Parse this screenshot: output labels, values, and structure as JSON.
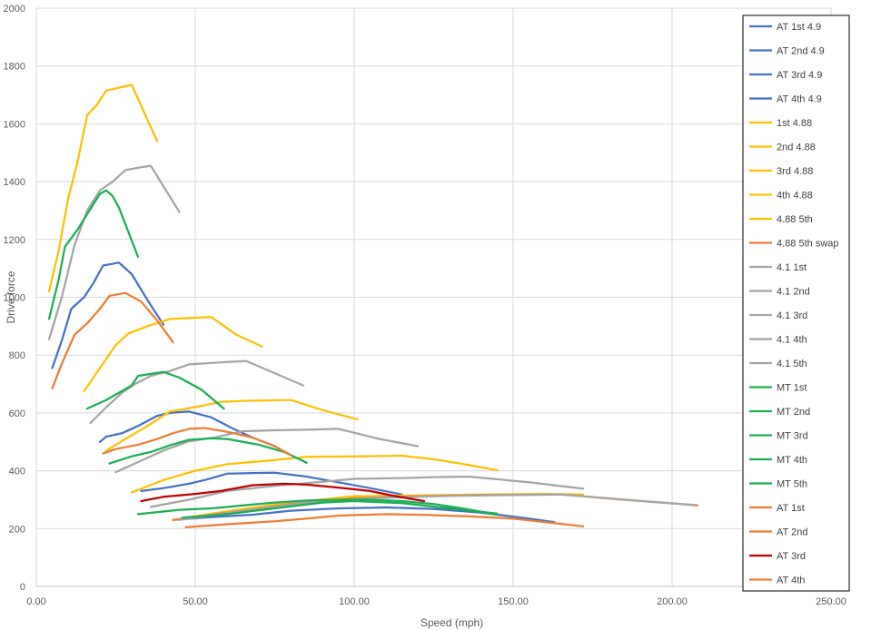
{
  "chart_data": {
    "type": "line",
    "xlabel": "Speed (mph)",
    "ylabel": "Drive force",
    "xlim": [
      0,
      250
    ],
    "ylim": [
      0,
      2000
    ],
    "x_ticks": [
      "0.00",
      "50.00",
      "100.00",
      "150.00",
      "200.00",
      "250.00"
    ],
    "y_ticks": [
      "0",
      "200",
      "400",
      "600",
      "800",
      "1000",
      "1200",
      "1400",
      "1600",
      "1800",
      "2000"
    ],
    "grid": true,
    "legend_position": "right",
    "series": [
      {
        "name": "AT 1st 4.9",
        "color": "#4472C4",
        "points": [
          [
            5,
            755
          ],
          [
            8,
            850
          ],
          [
            11,
            960
          ],
          [
            15,
            1000
          ],
          [
            18,
            1050
          ],
          [
            21,
            1110
          ],
          [
            26,
            1120
          ],
          [
            30,
            1080
          ],
          [
            35,
            990
          ],
          [
            40,
            905
          ]
        ]
      },
      {
        "name": "AT 2nd 4.9",
        "color": "#4472C4",
        "points": [
          [
            20,
            500
          ],
          [
            22,
            518
          ],
          [
            27,
            530
          ],
          [
            32,
            555
          ],
          [
            38,
            590
          ],
          [
            42,
            600
          ],
          [
            48,
            605
          ],
          [
            55,
            585
          ],
          [
            62,
            545
          ],
          [
            68,
            515
          ],
          [
            75,
            485
          ]
        ]
      },
      {
        "name": "AT 3rd 4.9",
        "color": "#4472C4",
        "points": [
          [
            33,
            330
          ],
          [
            40,
            340
          ],
          [
            48,
            355
          ],
          [
            53,
            368
          ],
          [
            60,
            390
          ],
          [
            68,
            392
          ],
          [
            75,
            393
          ],
          [
            85,
            380
          ],
          [
            95,
            360
          ],
          [
            105,
            340
          ],
          [
            115,
            318
          ]
        ]
      },
      {
        "name": "AT 4th 4.9",
        "color": "#4472C4",
        "points": [
          [
            43,
            230
          ],
          [
            55,
            240
          ],
          [
            68,
            248
          ],
          [
            80,
            262
          ],
          [
            95,
            270
          ],
          [
            110,
            273
          ],
          [
            125,
            268
          ],
          [
            140,
            255
          ],
          [
            155,
            235
          ],
          [
            163,
            222
          ]
        ]
      },
      {
        "name": "1st 4.88",
        "color": "#FFC000",
        "points": [
          [
            4,
            1020
          ],
          [
            7,
            1160
          ],
          [
            10,
            1340
          ],
          [
            13,
            1470
          ],
          [
            16,
            1630
          ],
          [
            19,
            1665
          ],
          [
            22,
            1715
          ],
          [
            26,
            1725
          ],
          [
            30,
            1735
          ],
          [
            38,
            1540
          ]
        ]
      },
      {
        "name": "2nd 4.88",
        "color": "#FFC000",
        "points": [
          [
            15,
            675
          ],
          [
            20,
            755
          ],
          [
            25,
            835
          ],
          [
            29,
            875
          ],
          [
            35,
            900
          ],
          [
            42,
            925
          ],
          [
            48,
            928
          ],
          [
            55,
            932
          ],
          [
            63,
            870
          ],
          [
            71,
            830
          ]
        ]
      },
      {
        "name": "3rd 4.88",
        "color": "#FFC000",
        "points": [
          [
            22,
            470
          ],
          [
            28,
            510
          ],
          [
            35,
            555
          ],
          [
            42,
            605
          ],
          [
            50,
            620
          ],
          [
            58,
            638
          ],
          [
            66,
            642
          ],
          [
            80,
            645
          ],
          [
            90,
            610
          ],
          [
            101,
            578
          ]
        ]
      },
      {
        "name": "4th 4.88",
        "color": "#FFC000",
        "points": [
          [
            30,
            325
          ],
          [
            40,
            368
          ],
          [
            50,
            400
          ],
          [
            60,
            423
          ],
          [
            75,
            437
          ],
          [
            85,
            448
          ],
          [
            100,
            450
          ],
          [
            115,
            452
          ],
          [
            125,
            440
          ],
          [
            135,
            422
          ],
          [
            145,
            402
          ]
        ]
      },
      {
        "name": "4.88 5th",
        "color": "#FFC000",
        "points": [
          [
            43,
            230
          ],
          [
            60,
            260
          ],
          [
            80,
            290
          ],
          [
            100,
            312
          ],
          [
            120,
            315
          ],
          [
            140,
            318
          ],
          [
            160,
            320
          ],
          [
            172,
            318
          ]
        ]
      },
      {
        "name": "4.88 5th swap",
        "color": "#ED7D31",
        "points": [
          [
            43,
            230
          ],
          [
            60,
            255
          ],
          [
            80,
            285
          ],
          [
            100,
            305
          ],
          [
            120,
            312
          ],
          [
            140,
            316
          ],
          [
            165,
            318
          ],
          [
            185,
            300
          ],
          [
            208,
            280
          ]
        ]
      },
      {
        "name": "4.1 1st",
        "color": "#A5A5A5",
        "points": [
          [
            4,
            855
          ],
          [
            8,
            1000
          ],
          [
            12,
            1180
          ],
          [
            16,
            1300
          ],
          [
            20,
            1370
          ],
          [
            24,
            1400
          ],
          [
            28,
            1440
          ],
          [
            32,
            1448
          ],
          [
            36,
            1455
          ],
          [
            45,
            1295
          ]
        ]
      },
      {
        "name": "4.1 2nd",
        "color": "#A5A5A5",
        "points": [
          [
            17,
            565
          ],
          [
            22,
            620
          ],
          [
            27,
            670
          ],
          [
            31,
            700
          ],
          [
            36,
            728
          ],
          [
            42,
            745
          ],
          [
            48,
            768
          ],
          [
            58,
            775
          ],
          [
            66,
            780
          ],
          [
            84,
            695
          ]
        ]
      },
      {
        "name": "4.1 3rd",
        "color": "#A5A5A5",
        "points": [
          [
            25,
            395
          ],
          [
            32,
            430
          ],
          [
            40,
            470
          ],
          [
            48,
            502
          ],
          [
            56,
            515
          ],
          [
            65,
            537
          ],
          [
            75,
            540
          ],
          [
            85,
            542
          ],
          [
            95,
            545
          ],
          [
            108,
            510
          ],
          [
            120,
            485
          ]
        ]
      },
      {
        "name": "4.1 4th",
        "color": "#A5A5A5",
        "points": [
          [
            36,
            275
          ],
          [
            48,
            300
          ],
          [
            60,
            330
          ],
          [
            75,
            348
          ],
          [
            90,
            362
          ],
          [
            100,
            372
          ],
          [
            115,
            375
          ],
          [
            125,
            378
          ],
          [
            136,
            380
          ],
          [
            155,
            360
          ],
          [
            172,
            338
          ]
        ]
      },
      {
        "name": "4.1 5th",
        "color": "#A5A5A5",
        "points": [
          [
            45,
            230
          ],
          [
            65,
            262
          ],
          [
            85,
            290
          ],
          [
            105,
            305
          ],
          [
            125,
            312
          ],
          [
            150,
            316
          ],
          [
            165,
            318
          ],
          [
            185,
            300
          ],
          [
            207,
            282
          ]
        ]
      },
      {
        "name": "MT 1st",
        "color": "#1AAF54",
        "points": [
          [
            4,
            925
          ],
          [
            7,
            1060
          ],
          [
            9,
            1175
          ],
          [
            13,
            1235
          ],
          [
            17,
            1305
          ],
          [
            20,
            1358
          ],
          [
            22,
            1370
          ],
          [
            24,
            1350
          ],
          [
            26,
            1310
          ],
          [
            32,
            1140
          ]
        ]
      },
      {
        "name": "MT 2nd",
        "color": "#1AAF54",
        "points": [
          [
            16,
            615
          ],
          [
            22,
            645
          ],
          [
            26,
            670
          ],
          [
            30,
            695
          ],
          [
            32,
            728
          ],
          [
            36,
            735
          ],
          [
            40,
            742
          ],
          [
            45,
            722
          ],
          [
            52,
            680
          ],
          [
            59,
            615
          ]
        ]
      },
      {
        "name": "MT 3rd",
        "color": "#1AAF54",
        "points": [
          [
            23,
            425
          ],
          [
            30,
            450
          ],
          [
            36,
            465
          ],
          [
            42,
            488
          ],
          [
            48,
            507
          ],
          [
            55,
            512
          ],
          [
            60,
            510
          ],
          [
            70,
            490
          ],
          [
            78,
            465
          ],
          [
            85,
            428
          ]
        ]
      },
      {
        "name": "MT 4th",
        "color": "#1AAF54",
        "points": [
          [
            32,
            250
          ],
          [
            45,
            265
          ],
          [
            55,
            270
          ],
          [
            65,
            280
          ],
          [
            75,
            290
          ],
          [
            85,
            297
          ],
          [
            95,
            300
          ],
          [
            105,
            300
          ],
          [
            115,
            295
          ],
          [
            125,
            285
          ],
          [
            135,
            268
          ],
          [
            145,
            248
          ]
        ]
      },
      {
        "name": "MT 5th",
        "color": "#1AAF54",
        "points": [
          [
            46,
            238
          ],
          [
            60,
            250
          ],
          [
            75,
            270
          ],
          [
            90,
            290
          ],
          [
            100,
            295
          ],
          [
            115,
            288
          ],
          [
            130,
            270
          ],
          [
            145,
            252
          ]
        ]
      },
      {
        "name": "AT 1st",
        "color": "#ED7D31",
        "points": [
          [
            5,
            685
          ],
          [
            8,
            770
          ],
          [
            12,
            870
          ],
          [
            16,
            910
          ],
          [
            20,
            960
          ],
          [
            23,
            1005
          ],
          [
            28,
            1015
          ],
          [
            33,
            985
          ],
          [
            38,
            920
          ],
          [
            43,
            845
          ]
        ]
      },
      {
        "name": "AT 2nd",
        "color": "#ED7D31",
        "points": [
          [
            21,
            460
          ],
          [
            25,
            475
          ],
          [
            32,
            490
          ],
          [
            38,
            510
          ],
          [
            43,
            530
          ],
          [
            48,
            545
          ],
          [
            53,
            548
          ],
          [
            60,
            535
          ],
          [
            68,
            515
          ],
          [
            75,
            485
          ],
          [
            80,
            455
          ]
        ]
      },
      {
        "name": "AT 3rd",
        "color": "#C00000",
        "points": [
          [
            33,
            295
          ],
          [
            40,
            310
          ],
          [
            50,
            320
          ],
          [
            58,
            330
          ],
          [
            68,
            350
          ],
          [
            78,
            355
          ],
          [
            85,
            352
          ],
          [
            95,
            342
          ],
          [
            105,
            330
          ],
          [
            113,
            312
          ],
          [
            122,
            295
          ]
        ]
      },
      {
        "name": "AT 4th",
        "color": "#ED7D31",
        "points": [
          [
            47,
            205
          ],
          [
            60,
            215
          ],
          [
            75,
            225
          ],
          [
            85,
            235
          ],
          [
            95,
            245
          ],
          [
            110,
            250
          ],
          [
            120,
            248
          ],
          [
            135,
            243
          ],
          [
            150,
            235
          ],
          [
            172,
            208
          ]
        ]
      }
    ]
  }
}
